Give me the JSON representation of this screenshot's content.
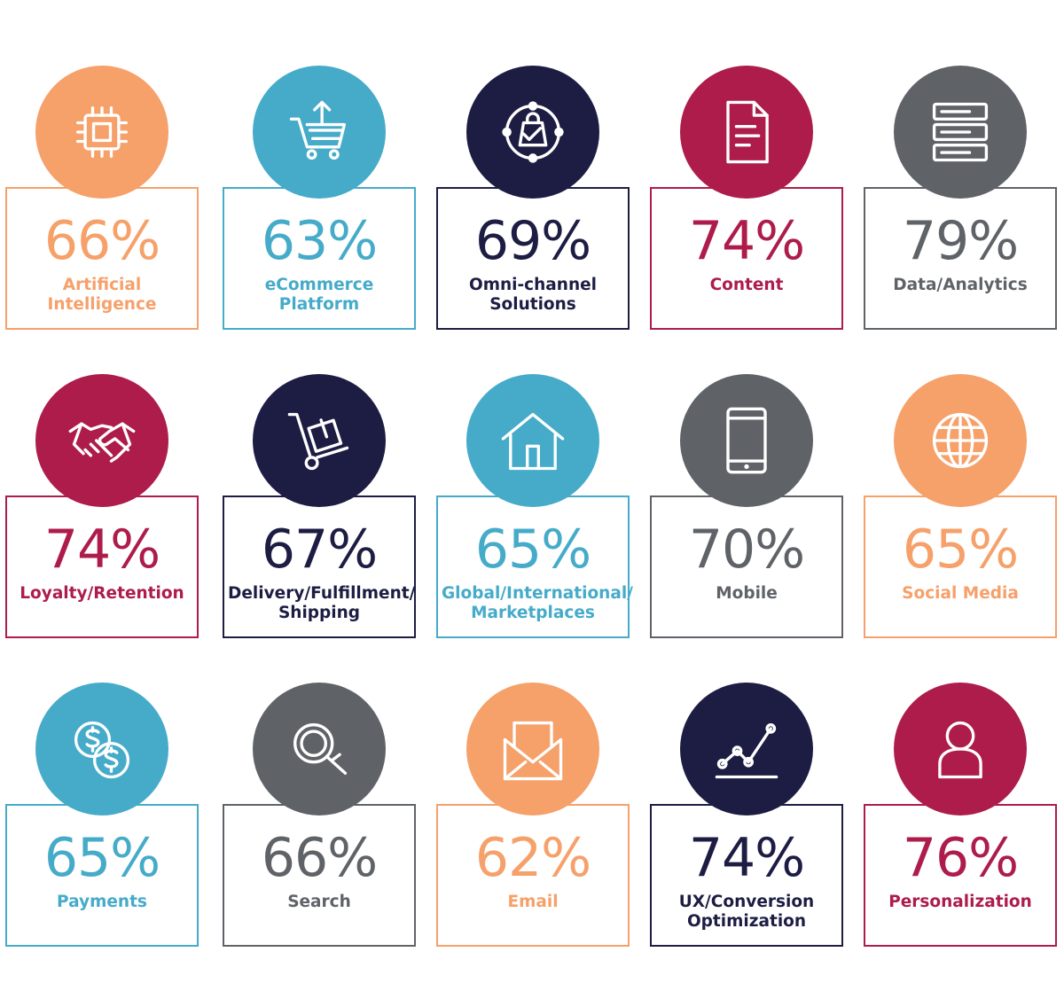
{
  "colors": {
    "orange": "#f6a06a",
    "blue": "#45abc9",
    "navy": "#1d1d44",
    "crimson": "#ad1c4b",
    "gray": "#5f6368"
  },
  "tiles": [
    {
      "percent": "66%",
      "label": [
        "Artificial",
        "Intelligence"
      ],
      "color": "orange",
      "icon": "cpu-chip-icon"
    },
    {
      "percent": "63%",
      "label": [
        "eCommerce",
        "Platform"
      ],
      "color": "blue",
      "icon": "shopping-cart-icon"
    },
    {
      "percent": "69%",
      "label": [
        "Omni-channel",
        "Solutions"
      ],
      "color": "navy",
      "icon": "omnichannel-bag-icon"
    },
    {
      "percent": "74%",
      "label": [
        "Content"
      ],
      "color": "crimson",
      "icon": "document-icon"
    },
    {
      "percent": "79%",
      "label": [
        "Data/Analytics"
      ],
      "color": "gray",
      "icon": "server-icon"
    },
    {
      "percent": "74%",
      "label": [
        "Loyalty/Retention"
      ],
      "color": "crimson",
      "icon": "handshake-icon"
    },
    {
      "percent": "67%",
      "label": [
        "Delivery/Fulfillment/",
        "Shipping"
      ],
      "color": "navy",
      "icon": "hand-truck-icon"
    },
    {
      "percent": "65%",
      "label": [
        "Global/International/",
        "Marketplaces"
      ],
      "color": "blue",
      "icon": "storefront-icon"
    },
    {
      "percent": "70%",
      "label": [
        "Mobile"
      ],
      "color": "gray",
      "icon": "smartphone-icon"
    },
    {
      "percent": "65%",
      "label": [
        "Social Media"
      ],
      "color": "orange",
      "icon": "globe-icon"
    },
    {
      "percent": "65%",
      "label": [
        "Payments"
      ],
      "color": "blue",
      "icon": "dollar-coins-icon"
    },
    {
      "percent": "66%",
      "label": [
        "Search"
      ],
      "color": "gray",
      "icon": "magnifier-icon"
    },
    {
      "percent": "62%",
      "label": [
        "Email"
      ],
      "color": "orange",
      "icon": "envelope-icon"
    },
    {
      "percent": "74%",
      "label": [
        "UX/Conversion",
        "Optimization"
      ],
      "color": "navy",
      "icon": "line-chart-icon"
    },
    {
      "percent": "76%",
      "label": [
        "Personalization"
      ],
      "color": "crimson",
      "icon": "user-icon"
    }
  ]
}
